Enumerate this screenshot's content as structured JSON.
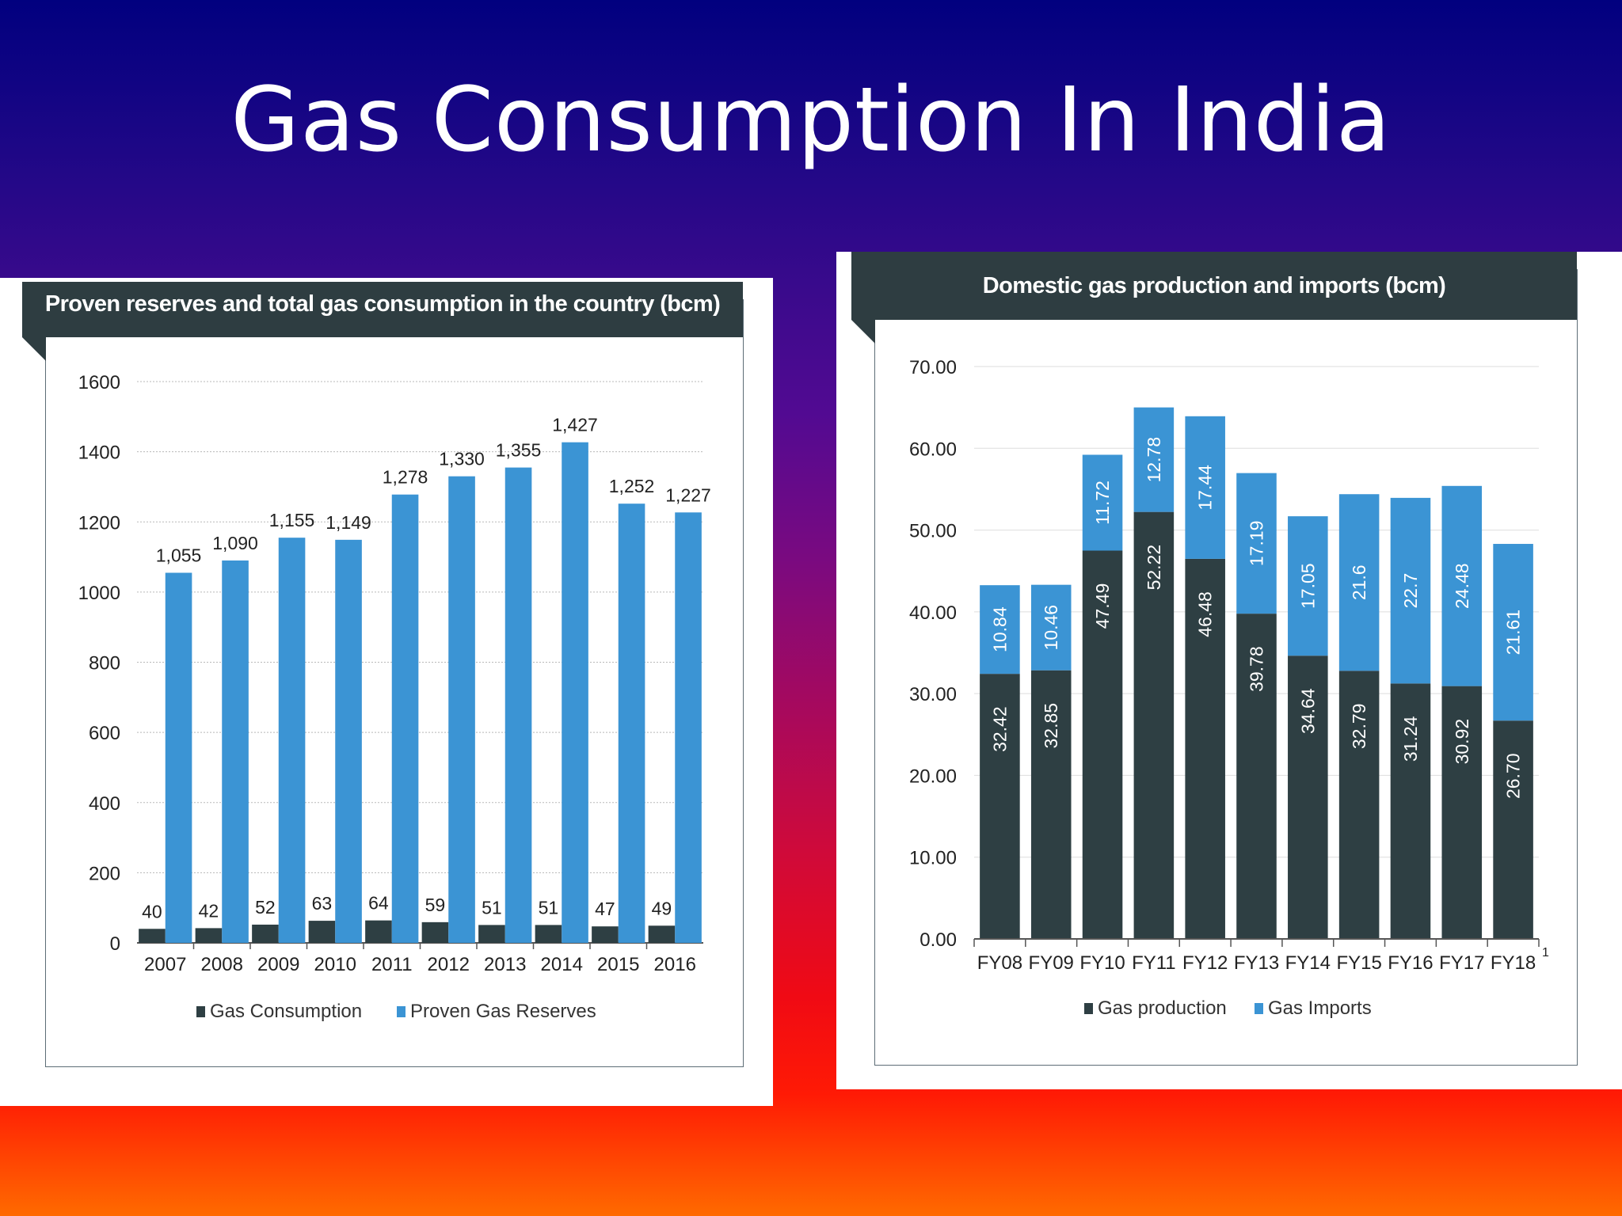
{
  "slide": {
    "title": "Gas Consumption In India"
  },
  "colors": {
    "dark": "#2e3f43",
    "blue": "#3b94d4",
    "grid": "#b8b8b8",
    "axis": "#555555",
    "banner": "#2e3d41"
  },
  "chart_data": [
    {
      "type": "bar",
      "title": "Proven reserves and total gas consumption in the country (bcm)",
      "categories": [
        "2007",
        "2008",
        "2009",
        "2010",
        "2011",
        "2012",
        "2013",
        "2014",
        "2015",
        "2016"
      ],
      "series": [
        {
          "name": "Gas Consumption",
          "values": [
            40,
            42,
            52,
            63,
            64,
            59,
            51,
            51,
            47,
            49
          ],
          "labels": [
            "40",
            "42",
            "52",
            "63",
            "64",
            "59",
            "51",
            "51",
            "47",
            "49"
          ]
        },
        {
          "name": "Proven Gas Reserves",
          "values": [
            1055,
            1090,
            1155,
            1149,
            1278,
            1330,
            1355,
            1427,
            1252,
            1227
          ],
          "labels": [
            "1,055",
            "1,090",
            "1,155",
            "1,149",
            "1,278",
            "1,330",
            "1,355",
            "1,427",
            "1,252",
            "1,227"
          ]
        }
      ],
      "yticks": [
        "0",
        "200",
        "400",
        "600",
        "800",
        "1000",
        "1200",
        "1400",
        "1600"
      ],
      "ylim": [
        0,
        1600
      ],
      "grid": true,
      "legend": "bottom"
    },
    {
      "type": "bar",
      "stacked": true,
      "title": "Domestic gas production and imports (bcm)",
      "categories": [
        "FY08",
        "FY09",
        "FY10",
        "FY11",
        "FY12",
        "FY13",
        "FY14",
        "FY15",
        "FY16",
        "FY17",
        "FY18"
      ],
      "footnote": "1",
      "series": [
        {
          "name": "Gas production",
          "values": [
            32.42,
            32.85,
            47.49,
            52.22,
            46.48,
            39.78,
            34.64,
            32.79,
            31.24,
            30.92,
            26.7
          ],
          "labels": [
            "32.42",
            "32.85",
            "47.49",
            "52.22",
            "46.48",
            "39.78",
            "34.64",
            "32.79",
            "31.24",
            "30.92",
            "26.70"
          ]
        },
        {
          "name": "Gas Imports",
          "values": [
            10.84,
            10.46,
            11.72,
            12.78,
            17.44,
            17.19,
            17.05,
            21.6,
            22.7,
            24.48,
            21.61
          ],
          "labels": [
            "10.84",
            "10.46",
            "11.72",
            "12.78",
            "17.44",
            "17.19",
            "17.05",
            "21.6",
            "22.7",
            "24.48",
            "21.61"
          ]
        }
      ],
      "yticks": [
        "0.00",
        "10.00",
        "20.00",
        "30.00",
        "40.00",
        "50.00",
        "60.00",
        "70.00"
      ],
      "ylim": [
        0,
        70
      ],
      "grid": true,
      "legend": "bottom"
    }
  ]
}
